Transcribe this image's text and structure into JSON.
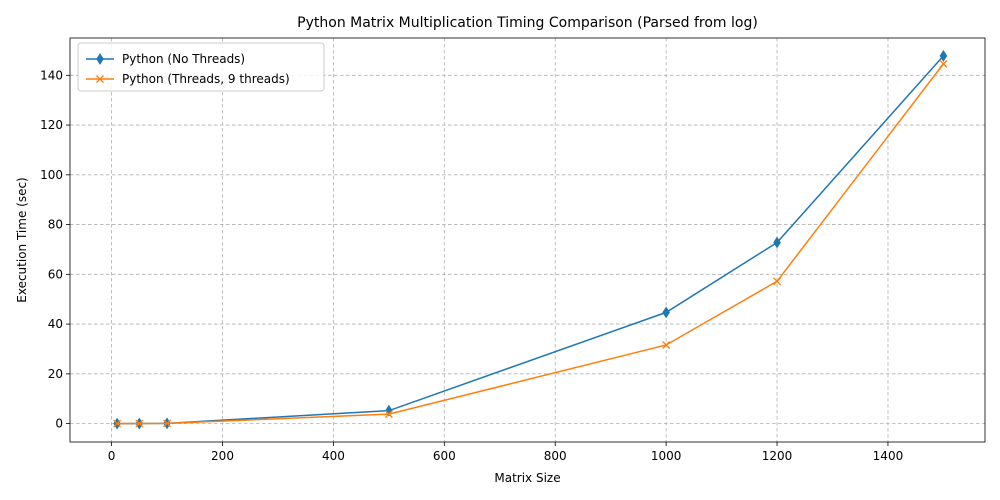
{
  "chart_data": {
    "type": "line",
    "title": "Python Matrix Multiplication Timing Comparison (Parsed from log)",
    "xlabel": "Matrix Size",
    "ylabel": "Execution Time (sec)",
    "xlim": [
      -75,
      1575
    ],
    "ylim": [
      -7.4,
      155
    ],
    "xticks": [
      0,
      200,
      400,
      600,
      800,
      1000,
      1200,
      1400
    ],
    "yticks": [
      0,
      20,
      40,
      60,
      80,
      100,
      120,
      140
    ],
    "grid": true,
    "legend_position": "top-left",
    "series": [
      {
        "name": "Python (No Threads)",
        "color": "#1f77b4",
        "marker": "thin-diamond",
        "x": [
          10,
          50,
          100,
          500,
          1000,
          1200,
          1500
        ],
        "y": [
          0.0,
          0.02,
          0.1,
          5.2,
          44.7,
          72.8,
          147.8
        ]
      },
      {
        "name": "Python (Threads, 9 threads)",
        "color": "#ff7f0e",
        "marker": "x",
        "x": [
          10,
          50,
          100,
          500,
          1000,
          1200,
          1500
        ],
        "y": [
          0.0,
          0.03,
          0.1,
          3.8,
          31.6,
          57.2,
          144.6
        ]
      }
    ]
  }
}
